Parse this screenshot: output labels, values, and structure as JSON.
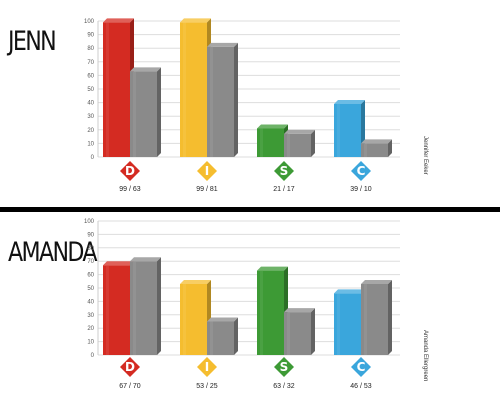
{
  "chart_data": [
    {
      "type": "bar",
      "title": "JENN",
      "side_label": "Jennifer Eeker",
      "categories": [
        "D",
        "I",
        "S",
        "C"
      ],
      "pair_labels": [
        "99 / 63",
        "99 / 81",
        "21 / 17",
        "39 / 10"
      ],
      "series": [
        {
          "values": [
            99,
            99,
            21,
            39
          ]
        },
        {
          "values": [
            63,
            81,
            17,
            10
          ]
        }
      ],
      "ylim": [
        0,
        100
      ],
      "yticks": [
        "0",
        "10",
        "20",
        "30",
        "40",
        "50",
        "60",
        "70",
        "80",
        "90",
        "100"
      ],
      "grid": true,
      "colors": {
        "D": "#d42b22",
        "I": "#f5bd2f",
        "S": "#3d9a35",
        "C": "#3aa6dc",
        "second": "#8a8a8a"
      }
    },
    {
      "type": "bar",
      "title": "AMANDA",
      "side_label": "Amanda Ellergreen",
      "categories": [
        "D",
        "I",
        "S",
        "C"
      ],
      "pair_labels": [
        "67 / 70",
        "53 / 25",
        "63 / 32",
        "46 / 53"
      ],
      "series": [
        {
          "values": [
            67,
            53,
            63,
            46
          ]
        },
        {
          "values": [
            70,
            25,
            32,
            53
          ]
        }
      ],
      "ylim": [
        0,
        100
      ],
      "yticks": [
        "0",
        "10",
        "20",
        "30",
        "40",
        "50",
        "60",
        "70",
        "80",
        "90",
        "100"
      ],
      "grid": true,
      "colors": {
        "D": "#d42b22",
        "I": "#f5bd2f",
        "S": "#3d9a35",
        "C": "#3aa6dc",
        "second": "#8a8a8a"
      }
    }
  ]
}
